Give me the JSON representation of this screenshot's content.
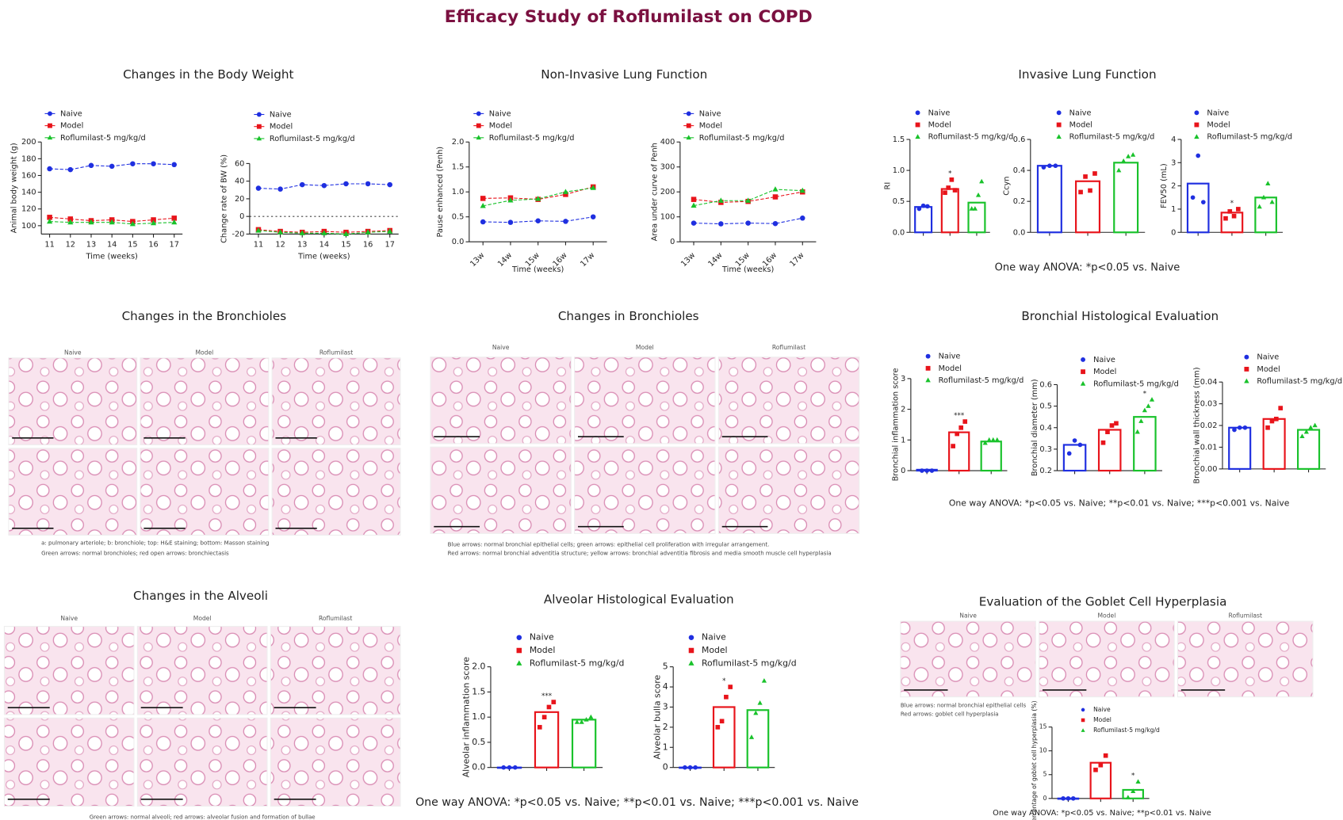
{
  "title": "Efficacy Study of Roflumilast on COPD",
  "panels": [
    {
      "title": "Changes in the Body Weight"
    },
    {
      "title": "Non-Invasive Lung Function"
    },
    {
      "title": "Invasive Lung Function",
      "footnote": "One way ANOVA: *p<0.05 vs. Naive"
    },
    {
      "title": "Changes in the Bronchioles"
    },
    {
      "title": "Changes in Bronchioles"
    },
    {
      "title": "Bronchial Histological Evaluation",
      "footnote": "One way ANOVA: *p<0.05 vs. Naive; **p<0.01 vs. Naive; ***p<0.001 vs. Naive"
    },
    {
      "title": "Changes in the Alveoli"
    },
    {
      "title": "Alveolar Histological Evaluation",
      "footnote": "One way ANOVA: *p<0.05 vs. Naive; **p<0.01 vs. Naive; ***p<0.001 vs. Naive"
    },
    {
      "title": "Evaluation of the Goblet Cell Hyperplasia",
      "footnote": "One way ANOVA: *p<0.05 vs. Naive; **p<0.01 vs. Naive"
    }
  ],
  "histology": [
    {
      "columns": [
        "Naive",
        "Model",
        "Roflumilast"
      ],
      "captions": [
        "a: pulmonary arteriole; b: bronchiole; top: H&E staining; bottom: Masson staining",
        "Green arrows: normal bronchioles; red open arrows: bronchiectasis"
      ]
    },
    {
      "columns": [
        "Naive",
        "Model",
        "Roflumilast"
      ],
      "captions": [
        "Blue arrows: normal bronchial epithelial cells; green arrows: epithelial cell proliferation with irregular arrangement.",
        "Red arrows: normal bronchial adventitia structure; yellow arrows: bronchial adventitia fibrosis and media smooth muscle cell hyperplasia"
      ]
    },
    {
      "columns": [
        "Naive",
        "Model",
        "Roflumilast"
      ],
      "captions": [
        "Green arrows: normal alveoli; red arrows: alveolar fusion and formation of bullae"
      ]
    },
    {
      "columns": [
        "Naive",
        "Model",
        "Roflumilast"
      ],
      "captions": [
        "Blue arrows: normal bronchial epithelial cells",
        "Red arrows: goblet cell hyperplasia"
      ]
    }
  ],
  "chart_data": [
    {
      "type": "line",
      "xlabel": "Time (weeks)",
      "ylabel": "Animal body weight (g)",
      "x": [
        11,
        12,
        13,
        14,
        15,
        16,
        17
      ],
      "xlim": [
        10.6,
        17.4
      ],
      "xticks": [
        11,
        12,
        13,
        14,
        15,
        16,
        17
      ],
      "ylim": [
        90,
        200
      ],
      "yticks": [
        100,
        120,
        140,
        160,
        180,
        200
      ],
      "series": [
        {
          "name": "Naive",
          "color": "#1f2fe0",
          "values": [
            168,
            167,
            172,
            171,
            174,
            174,
            173
          ]
        },
        {
          "name": "Model",
          "color": "#e8141b",
          "values": [
            110,
            108,
            106,
            107,
            105,
            107,
            109
          ]
        },
        {
          "name": "Roflumilast-5 mg/kg/d",
          "color": "#19c22b",
          "values": [
            105,
            104,
            104,
            104,
            102,
            103,
            104
          ]
        }
      ]
    },
    {
      "type": "line",
      "xlabel": "Time (weeks)",
      "ylabel": "Change rate of BW (%)",
      "zero_line": true,
      "x": [
        11,
        12,
        13,
        14,
        15,
        16,
        17
      ],
      "xlim": [
        10.6,
        17.4
      ],
      "xticks": [
        11,
        12,
        13,
        14,
        15,
        16,
        17
      ],
      "ylim": [
        -20,
        60
      ],
      "yticks": [
        -20,
        0,
        20,
        40,
        60
      ],
      "series": [
        {
          "name": "Naive",
          "color": "#1f2fe0",
          "values": [
            32,
            31,
            36,
            35,
            37,
            37,
            36
          ]
        },
        {
          "name": "Model",
          "color": "#e8141b",
          "values": [
            -15,
            -17,
            -18,
            -17,
            -18,
            -17,
            -16
          ]
        },
        {
          "name": "Roflumilast-5 mg/kg/d",
          "color": "#19c22b",
          "values": [
            -16,
            -18,
            -19,
            -19,
            -20,
            -18,
            -17
          ]
        }
      ]
    },
    {
      "type": "line",
      "xlabel": "Time (weeks)",
      "ylabel": "Pause enhanced (Penh)",
      "categories": [
        "13w",
        "14w",
        "15w",
        "16w",
        "17w"
      ],
      "ylim": [
        0,
        2
      ],
      "yticks": [
        {
          "value": 0,
          "label": "0.0"
        },
        0.5,
        {
          "value": 1,
          "label": "1.0"
        },
        1.5,
        {
          "value": 2,
          "label": "2.0"
        }
      ],
      "series": [
        {
          "name": "Naive",
          "color": "#1f2fe0",
          "values": [
            0.4,
            0.39,
            0.42,
            0.41,
            0.5
          ]
        },
        {
          "name": "Model",
          "color": "#e8141b",
          "values": [
            0.87,
            0.88,
            0.85,
            0.95,
            1.1
          ]
        },
        {
          "name": "Roflumilast-5 mg/kg/d",
          "color": "#19c22b",
          "values": [
            0.72,
            0.83,
            0.86,
            1.0,
            1.08
          ]
        }
      ]
    },
    {
      "type": "line",
      "xlabel": "Time (weeks)",
      "ylabel": "Area under curve of Penh",
      "categories": [
        "13w",
        "14w",
        "15w",
        "16w",
        "17w"
      ],
      "ylim": [
        0,
        400
      ],
      "yticks": [
        0,
        100,
        200,
        300,
        400
      ],
      "series": [
        {
          "name": "Naive",
          "color": "#1f2fe0",
          "values": [
            75,
            72,
            75,
            73,
            95
          ]
        },
        {
          "name": "Model",
          "color": "#e8141b",
          "values": [
            170,
            158,
            162,
            180,
            200
          ]
        },
        {
          "name": "Roflumilast-5 mg/kg/d",
          "color": "#19c22b",
          "values": [
            145,
            165,
            165,
            210,
            205
          ]
        }
      ]
    },
    {
      "type": "bar",
      "ylabel": "RI",
      "ylim": [
        0,
        1.5
      ],
      "yticks": [
        {
          "value": 0,
          "label": "0.0"
        },
        0.5,
        {
          "value": 1,
          "label": "1.0"
        },
        1.5
      ],
      "series": [
        {
          "name": "Naive",
          "color": "#1f2fe0",
          "value": 0.41,
          "points": [
            0.38,
            0.43,
            0.42
          ]
        },
        {
          "name": "Model",
          "color": "#e8141b",
          "value": 0.7,
          "sig": "*",
          "points": [
            0.64,
            0.72,
            0.85,
            0.68
          ]
        },
        {
          "name": "Roflumilast-5 mg/kg/d",
          "color": "#19c22b",
          "value": 0.48,
          "points": [
            0.38,
            0.38,
            0.6,
            0.82
          ]
        }
      ]
    },
    {
      "type": "bar",
      "ylabel": "Ccyn",
      "ylim": [
        0,
        0.6
      ],
      "yticks": [
        {
          "value": 0,
          "label": "0.0"
        },
        0.2,
        0.4,
        0.6
      ],
      "series": [
        {
          "name": "Naive",
          "color": "#1f2fe0",
          "value": 0.43,
          "points": [
            0.42,
            0.43,
            0.43
          ]
        },
        {
          "name": "Model",
          "color": "#e8141b",
          "value": 0.33,
          "points": [
            0.26,
            0.36,
            0.27,
            0.38
          ]
        },
        {
          "name": "Roflumilast-5 mg/kg/d",
          "color": "#19c22b",
          "value": 0.45,
          "points": [
            0.4,
            0.46,
            0.49,
            0.5
          ]
        }
      ]
    },
    {
      "type": "bar",
      "ylabel": "FEV50 (mL)",
      "ylim": [
        0,
        4
      ],
      "yticks": [
        0,
        1,
        2,
        3,
        4
      ],
      "series": [
        {
          "name": "Naive",
          "color": "#1f2fe0",
          "value": 2.1,
          "points": [
            1.5,
            3.3,
            1.3
          ]
        },
        {
          "name": "Model",
          "color": "#e8141b",
          "value": 0.85,
          "sig": "*",
          "points": [
            0.6,
            0.9,
            0.7,
            1.0
          ]
        },
        {
          "name": "Roflumilast-5 mg/kg/d",
          "color": "#19c22b",
          "value": 1.5,
          "points": [
            1.1,
            1.5,
            2.1,
            1.3
          ]
        }
      ]
    },
    {
      "type": "bar",
      "ylabel": "Bronchial inflammation score",
      "ylim": [
        0,
        3
      ],
      "yticks": [
        0,
        1,
        2,
        3
      ],
      "series": [
        {
          "name": "Naive",
          "color": "#1f2fe0",
          "value": 0.03,
          "points": [
            0,
            0,
            0
          ]
        },
        {
          "name": "Model",
          "color": "#e8141b",
          "value": 1.25,
          "sig": "***",
          "points": [
            0.8,
            1.2,
            1.4,
            1.6
          ]
        },
        {
          "name": "Roflumilast-5 mg/kg/d",
          "color": "#19c22b",
          "value": 0.95,
          "points": [
            0.9,
            1.0,
            1.0,
            1.0
          ]
        }
      ]
    },
    {
      "type": "bar",
      "ylabel": "Bronchial diameter (mm)",
      "ylim": [
        0.2,
        0.6
      ],
      "yticks": [
        0.2,
        0.3,
        0.4,
        0.5,
        0.6
      ],
      "series": [
        {
          "name": "Naive",
          "color": "#1f2fe0",
          "value": 0.32,
          "points": [
            0.28,
            0.34,
            0.32
          ]
        },
        {
          "name": "Model",
          "color": "#e8141b",
          "value": 0.39,
          "points": [
            0.33,
            0.38,
            0.41,
            0.42
          ]
        },
        {
          "name": "Roflumilast-5 mg/kg/d",
          "color": "#19c22b",
          "value": 0.45,
          "sig": "*",
          "points": [
            0.38,
            0.43,
            0.48,
            0.5,
            0.53
          ]
        }
      ]
    },
    {
      "type": "bar",
      "ylabel": "Bronchial wall thickness (mm)",
      "ylim": [
        0,
        0.04
      ],
      "yticks": [
        {
          "value": 0,
          "label": "0.00"
        },
        0.01,
        0.02,
        0.03,
        0.04
      ],
      "series": [
        {
          "name": "Naive",
          "color": "#1f2fe0",
          "value": 0.019,
          "points": [
            0.018,
            0.019,
            0.019
          ]
        },
        {
          "name": "Model",
          "color": "#e8141b",
          "value": 0.023,
          "points": [
            0.019,
            0.022,
            0.023,
            0.028
          ]
        },
        {
          "name": "Roflumilast-5 mg/kg/d",
          "color": "#19c22b",
          "value": 0.018,
          "points": [
            0.015,
            0.017,
            0.019,
            0.02
          ]
        }
      ]
    },
    {
      "type": "bar",
      "ylabel": "Alveolar inflammation score",
      "ylim": [
        0,
        2
      ],
      "yticks": [
        {
          "value": 0,
          "label": "0.0"
        },
        0.5,
        {
          "value": 1,
          "label": "1.0"
        },
        1.5,
        {
          "value": 2,
          "label": "2.0"
        }
      ],
      "series": [
        {
          "name": "Naive",
          "color": "#1f2fe0",
          "value": 0,
          "points": [
            0,
            0,
            0
          ]
        },
        {
          "name": "Model",
          "color": "#e8141b",
          "value": 1.1,
          "sig": "***",
          "points": [
            0.8,
            1.0,
            1.2,
            1.3
          ]
        },
        {
          "name": "Roflumilast-5 mg/kg/d",
          "color": "#19c22b",
          "value": 0.95,
          "points": [
            0.9,
            0.9,
            0.95,
            1.0
          ]
        }
      ]
    },
    {
      "type": "bar",
      "ylabel": "Alveolar bulla score",
      "ylim": [
        0,
        5
      ],
      "yticks": [
        0,
        1,
        2,
        3,
        4,
        5
      ],
      "series": [
        {
          "name": "Naive",
          "color": "#1f2fe0",
          "value": 0,
          "points": [
            0,
            0,
            0
          ]
        },
        {
          "name": "Model",
          "color": "#e8141b",
          "value": 3,
          "sig": "*",
          "points": [
            2,
            2.3,
            3.5,
            4
          ]
        },
        {
          "name": "Roflumilast-5 mg/kg/d",
          "color": "#19c22b",
          "value": 2.85,
          "points": [
            1.5,
            2.7,
            3.2,
            4.3
          ]
        }
      ]
    },
    {
      "type": "bar",
      "ylabel": "Percentage of goblet cell hyperplasia (%)",
      "ylim": [
        0,
        15
      ],
      "yticks": [
        0,
        5,
        10,
        15
      ],
      "series": [
        {
          "name": "Naive",
          "color": "#1f2fe0",
          "value": 0,
          "points": [
            0,
            0,
            0
          ]
        },
        {
          "name": "Model",
          "color": "#e8141b",
          "value": 7.5,
          "points": [
            6,
            7,
            9
          ]
        },
        {
          "name": "Roflumilast-5 mg/kg/d",
          "color": "#19c22b",
          "value": 1.8,
          "sig": "*",
          "points": [
            0.2,
            1.5,
            3.5
          ]
        }
      ]
    }
  ]
}
